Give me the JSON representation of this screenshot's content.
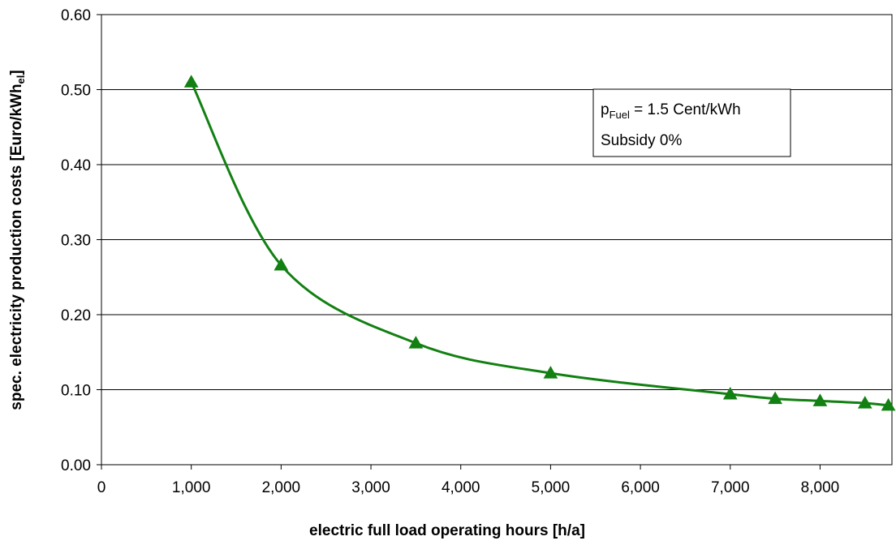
{
  "chart_data": {
    "type": "line",
    "xlabel": "electric full load operating hours [h/a]",
    "ylabel_main": "spec. electricity production costs [Euro/kWh",
    "ylabel_sub": "el",
    "ylabel_end": "]",
    "xlim": [
      0,
      8800
    ],
    "ylim": [
      0,
      0.6
    ],
    "x_ticks": [
      0,
      1000,
      2000,
      3000,
      4000,
      5000,
      6000,
      7000,
      8000
    ],
    "x_tick_labels": [
      "0",
      "1,000",
      "2,000",
      "3,000",
      "4,000",
      "5,000",
      "6,000",
      "7,000",
      "8,000"
    ],
    "y_ticks": [
      0,
      0.1,
      0.2,
      0.3,
      0.4,
      0.5,
      0.6
    ],
    "y_tick_labels": [
      "0.00",
      "0.10",
      "0.20",
      "0.30",
      "0.40",
      "0.50",
      "0.60"
    ],
    "grid": "horizontal",
    "series": [
      {
        "marker": "triangle",
        "color": "#128012",
        "x": [
          1000,
          2000,
          3500,
          5000,
          7000,
          7500,
          8000,
          8500,
          8760
        ],
        "y": [
          0.51,
          0.266,
          0.162,
          0.122,
          0.094,
          0.088,
          0.085,
          0.082,
          0.079
        ]
      }
    ],
    "annotation": {
      "line1_p": "p",
      "line1_sub": "Fuel",
      "line1_rest": " = 1.5 Cent/kWh",
      "line2": "Subsidy 0%"
    }
  }
}
